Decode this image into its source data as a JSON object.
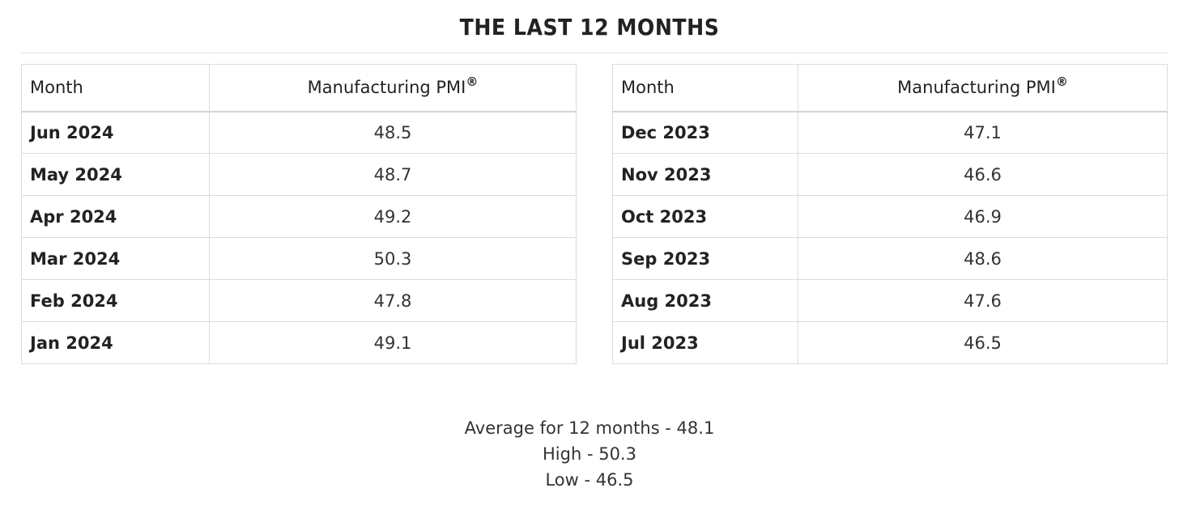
{
  "title": "THE LAST 12 MONTHS",
  "tables": [
    {
      "headers": {
        "month": "Month",
        "pmi": "Manufacturing PMI",
        "pmi_mark": "®"
      },
      "rows": [
        {
          "month": "Jun 2024",
          "value": "48.5"
        },
        {
          "month": "May 2024",
          "value": "48.7"
        },
        {
          "month": "Apr 2024",
          "value": "49.2"
        },
        {
          "month": "Mar 2024",
          "value": "50.3"
        },
        {
          "month": "Feb 2024",
          "value": "47.8"
        },
        {
          "month": "Jan 2024",
          "value": "49.1"
        }
      ]
    },
    {
      "headers": {
        "month": "Month",
        "pmi": "Manufacturing PMI",
        "pmi_mark": "®"
      },
      "rows": [
        {
          "month": "Dec 2023",
          "value": "47.1"
        },
        {
          "month": "Nov 2023",
          "value": "46.6"
        },
        {
          "month": "Oct 2023",
          "value": "46.9"
        },
        {
          "month": "Sep 2023",
          "value": "48.6"
        },
        {
          "month": "Aug 2023",
          "value": "47.6"
        },
        {
          "month": "Jul 2023",
          "value": "46.5"
        }
      ]
    }
  ],
  "summary": {
    "average": "Average for 12 months - 48.1",
    "high": "High - 50.3",
    "low": "Low - 46.5"
  }
}
